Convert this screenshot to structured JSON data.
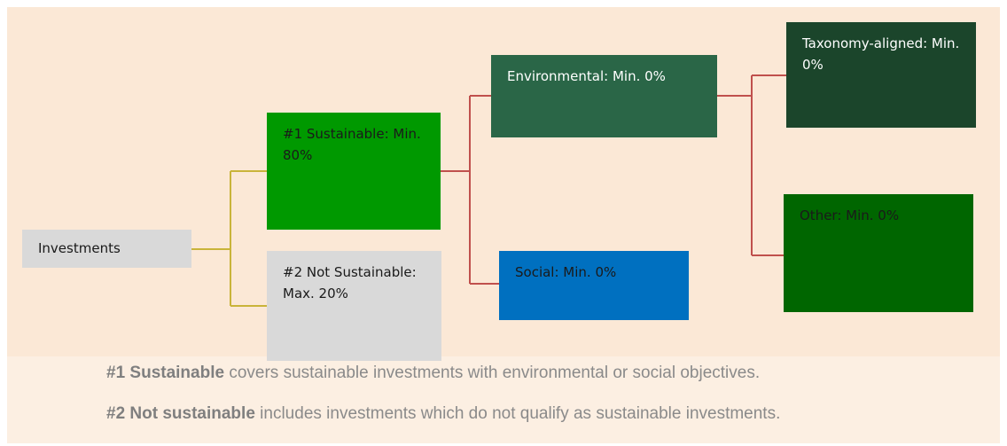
{
  "nodes": [
    {
      "label": "Investments"
    },
    {
      "label": "#1 Sustainable: Min. 80%"
    },
    {
      "label": "#2 Not Sustainable:  Max. 20%"
    },
    {
      "label": "Environmental: Min. 0%"
    },
    {
      "label": "Social: Min. 0%"
    },
    {
      "label": "Taxonomy-aligned: Min. 0%"
    },
    {
      "label": "Other: Min. 0%"
    }
  ],
  "notes": [
    {
      "bold": "#1 Sustainable",
      "text": " covers sustainable investments with environmental or social objectives."
    },
    {
      "bold": "#2 Not sustainable",
      "text": " includes investments which do not qualify as sustainable investments."
    }
  ]
}
